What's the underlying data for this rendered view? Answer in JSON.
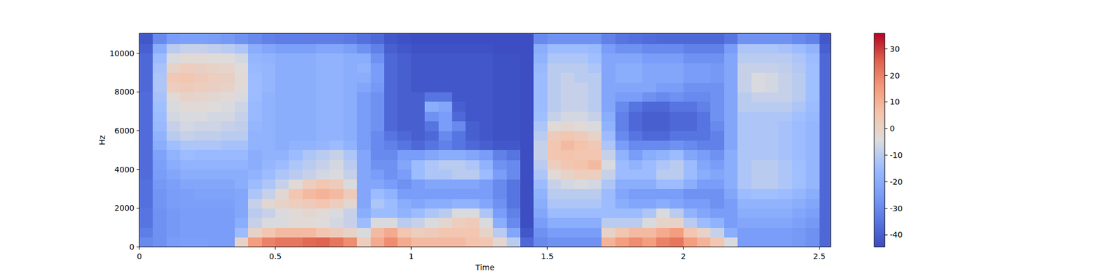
{
  "chart_data": {
    "type": "heatmap",
    "x_label": "Time",
    "y_label": "Hz",
    "x": [
      0.025,
      0.075,
      0.125,
      0.175,
      0.225,
      0.275,
      0.325,
      0.375,
      0.425,
      0.475,
      0.525,
      0.575,
      0.625,
      0.675,
      0.725,
      0.775,
      0.825,
      0.875,
      0.925,
      0.975,
      1.025,
      1.075,
      1.125,
      1.175,
      1.225,
      1.275,
      1.325,
      1.375,
      1.425,
      1.475,
      1.525,
      1.575,
      1.625,
      1.675,
      1.725,
      1.775,
      1.825,
      1.875,
      1.925,
      1.975,
      2.025,
      2.075,
      2.125,
      2.175,
      2.225,
      2.275,
      2.325,
      2.375,
      2.425,
      2.475,
      2.525
    ],
    "y": [
      250,
      750,
      1250,
      1750,
      2250,
      2750,
      3250,
      3750,
      4250,
      4750,
      5250,
      5750,
      6250,
      6750,
      7250,
      7750,
      8250,
      8750,
      9250,
      9750,
      10250,
      10750
    ],
    "cells": [
      [
        -30,
        -33,
        -35,
        -35,
        -36,
        -36,
        -36,
        -37,
        -37,
        -37,
        -37,
        -37,
        -37,
        -37,
        -37,
        -37,
        -38,
        -38,
        -38,
        -38,
        -40,
        -42
      ],
      [
        -28,
        -28,
        -28,
        -28,
        -27,
        -27,
        -26,
        -25,
        -24,
        -23,
        -20,
        -18,
        -16,
        -15,
        -14,
        -13,
        -12,
        -12,
        -13,
        -15,
        -20,
        -30
      ],
      [
        -25,
        -26,
        -26,
        -26,
        -25,
        -25,
        -24,
        -22,
        -20,
        -18,
        -14,
        -10,
        -8,
        -6,
        -5,
        -3,
        2,
        4,
        0,
        -5,
        -10,
        -25
      ],
      [
        -24,
        -25,
        -25,
        -25,
        -24,
        -24,
        -22,
        -20,
        -18,
        -15,
        -12,
        -8,
        -6,
        -5,
        -3,
        0,
        3,
        5,
        2,
        -3,
        -8,
        -24
      ],
      [
        -24,
        -25,
        -25,
        -25,
        -24,
        -23,
        -22,
        -20,
        -18,
        -16,
        -12,
        -9,
        -7,
        -5,
        -3,
        -1,
        2,
        3,
        1,
        -3,
        -8,
        -24
      ],
      [
        -25,
        -25,
        -25,
        -25,
        -24,
        -23,
        -22,
        -20,
        -18,
        -16,
        -12,
        -9,
        -7,
        -6,
        -4,
        -2,
        1,
        2,
        0,
        -4,
        -9,
        -25
      ],
      [
        -25,
        -25,
        -25,
        -25,
        -24,
        -23,
        -22,
        -20,
        -18,
        -16,
        -13,
        -10,
        -8,
        -6,
        -5,
        -3,
        0,
        1,
        -1,
        -4,
        -10,
        -26
      ],
      [
        0,
        -15,
        -20,
        -22,
        -22,
        -22,
        -20,
        -20,
        -18,
        -16,
        -13,
        -10,
        -9,
        -8,
        -7,
        -5,
        -3,
        -3,
        -4,
        -6,
        -12,
        -28
      ],
      [
        15,
        0,
        -8,
        -10,
        -8,
        -12,
        -15,
        -18,
        -20,
        -20,
        -18,
        -18,
        -17,
        -16,
        -16,
        -15,
        -15,
        -15,
        -16,
        -17,
        -20,
        -30
      ],
      [
        20,
        5,
        -5,
        -8,
        -2,
        -8,
        -12,
        -15,
        -17,
        -18,
        -18,
        -18,
        -18,
        -18,
        -18,
        -18,
        -17,
        -17,
        -17,
        -18,
        -22,
        -32
      ],
      [
        22,
        8,
        -5,
        -5,
        0,
        -2,
        -8,
        -12,
        -15,
        -18,
        -20,
        -20,
        -20,
        -20,
        -20,
        -20,
        -20,
        -20,
        -20,
        -20,
        -24,
        -33
      ],
      [
        22,
        8,
        -3,
        -3,
        2,
        5,
        -3,
        -10,
        -12,
        -15,
        -18,
        -20,
        -20,
        -20,
        -20,
        -20,
        -20,
        -20,
        -20,
        -20,
        -24,
        -33
      ],
      [
        24,
        8,
        -3,
        -2,
        3,
        8,
        2,
        -8,
        -10,
        -12,
        -18,
        -20,
        -20,
        -20,
        -20,
        -20,
        -20,
        -20,
        -20,
        -20,
        -24,
        -33
      ],
      [
        25,
        5,
        -4,
        -3,
        5,
        10,
        5,
        -6,
        -8,
        -10,
        -17,
        -18,
        -18,
        -18,
        -18,
        -18,
        -18,
        -18,
        -18,
        -18,
        -22,
        -33
      ],
      [
        22,
        3,
        -6,
        -5,
        2,
        8,
        3,
        -5,
        -6,
        -8,
        -15,
        -18,
        -18,
        -18,
        -18,
        -18,
        -18,
        -18,
        -18,
        -18,
        -22,
        -33
      ],
      [
        18,
        0,
        -8,
        -8,
        -2,
        3,
        -5,
        -8,
        -10,
        -12,
        -18,
        -20,
        -20,
        -20,
        -20,
        -20,
        -20,
        -20,
        -20,
        -20,
        -24,
        -34
      ],
      [
        2,
        -5,
        -15,
        -20,
        -22,
        -22,
        -22,
        -22,
        -22,
        -22,
        -25,
        -25,
        -25,
        -25,
        -25,
        -25,
        -22,
        -20,
        -18,
        -20,
        -28,
        -36
      ],
      [
        12,
        8,
        -5,
        -15,
        -12,
        -15,
        -22,
        -25,
        -28,
        -30,
        -30,
        -30,
        -28,
        -28,
        -28,
        -28,
        -26,
        -25,
        -25,
        -28,
        -32,
        -38
      ],
      [
        18,
        12,
        -5,
        -15,
        -15,
        -18,
        -25,
        -28,
        -28,
        -30,
        -32,
        -35,
        -38,
        -38,
        -38,
        -38,
        -38,
        -38,
        -38,
        -38,
        -40,
        -42
      ],
      [
        12,
        5,
        -10,
        -18,
        -20,
        -25,
        -28,
        -25,
        -22,
        -25,
        -35,
        -38,
        -40,
        -40,
        -40,
        -40,
        -40,
        -40,
        -40,
        -40,
        -42,
        -43
      ],
      [
        8,
        2,
        -8,
        -15,
        -22,
        -25,
        -25,
        -15,
        -15,
        -25,
        -38,
        -40,
        -40,
        -40,
        -40,
        -40,
        -42,
        -42,
        -42,
        -42,
        -43,
        -44
      ],
      [
        8,
        3,
        -5,
        -12,
        -20,
        -25,
        -22,
        -12,
        -12,
        -22,
        -35,
        -38,
        -35,
        -28,
        -20,
        -35,
        -42,
        -42,
        -42,
        -42,
        -43,
        -44
      ],
      [
        8,
        5,
        -2,
        -10,
        -20,
        -25,
        -22,
        -12,
        -10,
        -20,
        -32,
        -30,
        -25,
        -25,
        -22,
        -35,
        -42,
        -42,
        -42,
        -42,
        -43,
        -44
      ],
      [
        8,
        5,
        2,
        -5,
        -18,
        -25,
        -22,
        -10,
        -10,
        -20,
        -35,
        -35,
        -30,
        -38,
        -40,
        -42,
        -42,
        -42,
        -42,
        -42,
        -43,
        -44
      ],
      [
        6,
        5,
        3,
        -5,
        -18,
        -25,
        -22,
        -10,
        -12,
        -22,
        -38,
        -40,
        -40,
        -42,
        -42,
        -42,
        -42,
        -42,
        -42,
        -42,
        -43,
        -44
      ],
      [
        5,
        0,
        -5,
        -12,
        -22,
        -25,
        -25,
        -15,
        -18,
        -25,
        -40,
        -42,
        -42,
        -42,
        -42,
        -42,
        -42,
        -42,
        -42,
        -42,
        -43,
        -44
      ],
      [
        -2,
        -10,
        -20,
        -25,
        -28,
        -30,
        -30,
        -25,
        -28,
        -32,
        -42,
        -43,
        -43,
        -43,
        -43,
        -43,
        -43,
        -43,
        -43,
        -43,
        -44,
        -44
      ],
      [
        -10,
        -22,
        -30,
        -32,
        -35,
        -35,
        -35,
        -30,
        -30,
        -35,
        -42,
        -43,
        -43,
        -43,
        -43,
        -43,
        -43,
        -43,
        -43,
        -43,
        -44,
        -44
      ],
      [
        -38,
        -42,
        -44,
        -44,
        -44,
        -44,
        -44,
        -44,
        -44,
        -44,
        -44,
        -44,
        -44,
        -44,
        -44,
        -44,
        -44,
        -44,
        -44,
        -44,
        -44,
        -44
      ],
      [
        -30,
        -28,
        -25,
        -22,
        -20,
        -18,
        -15,
        -12,
        -10,
        -8,
        -8,
        -10,
        -12,
        -14,
        -15,
        -15,
        -15,
        -15,
        -16,
        -18,
        -20,
        -30
      ],
      [
        -28,
        -25,
        -20,
        -15,
        -12,
        -10,
        -8,
        -3,
        2,
        5,
        5,
        3,
        -3,
        -8,
        -10,
        -10,
        -10,
        -10,
        -10,
        -12,
        -15,
        -28
      ],
      [
        -28,
        -25,
        -20,
        -15,
        -12,
        -10,
        -6,
        0,
        5,
        6,
        8,
        5,
        -2,
        -6,
        -8,
        -8,
        -8,
        -8,
        -10,
        -12,
        -15,
        -28
      ],
      [
        -28,
        -25,
        -20,
        -15,
        -12,
        -10,
        -5,
        2,
        6,
        5,
        6,
        3,
        -3,
        -6,
        -8,
        -8,
        -8,
        -10,
        -10,
        -12,
        -15,
        -28
      ],
      [
        -28,
        -25,
        -20,
        -15,
        -12,
        -10,
        -6,
        2,
        8,
        5,
        4,
        0,
        -5,
        -8,
        -10,
        -10,
        -10,
        -10,
        -12,
        -14,
        -16,
        -28
      ],
      [
        10,
        0,
        -10,
        -15,
        -15,
        -15,
        -12,
        -8,
        -5,
        -8,
        -12,
        -15,
        -18,
        -20,
        -22,
        -22,
        -22,
        -22,
        -22,
        -22,
        -25,
        -32
      ],
      [
        15,
        5,
        -10,
        -15,
        -20,
        -22,
        -20,
        -15,
        -15,
        -18,
        -25,
        -30,
        -32,
        -32,
        -30,
        -25,
        -22,
        -20,
        -20,
        -22,
        -28,
        -35
      ],
      [
        18,
        8,
        -10,
        -15,
        -22,
        -25,
        -20,
        -15,
        -18,
        -25,
        -30,
        -35,
        -38,
        -38,
        -35,
        -25,
        -22,
        -20,
        -20,
        -22,
        -28,
        -36
      ],
      [
        15,
        8,
        -5,
        -12,
        -22,
        -25,
        -20,
        -15,
        -15,
        -20,
        -30,
        -38,
        -40,
        -40,
        -38,
        -28,
        -22,
        -22,
        -22,
        -25,
        -30,
        -37
      ],
      [
        20,
        12,
        0,
        -5,
        -20,
        -25,
        -15,
        -10,
        -12,
        -18,
        -30,
        -38,
        -40,
        -40,
        -38,
        -30,
        -25,
        -22,
        -22,
        -25,
        -30,
        -38
      ],
      [
        22,
        15,
        0,
        -10,
        -22,
        -25,
        -15,
        -10,
        -10,
        -15,
        -28,
        -35,
        -38,
        -38,
        -35,
        -28,
        -25,
        -22,
        -22,
        -25,
        -30,
        -38
      ],
      [
        15,
        5,
        -10,
        -18,
        -25,
        -28,
        -20,
        -15,
        -15,
        -22,
        -30,
        -35,
        -38,
        -38,
        -35,
        -30,
        -28,
        -25,
        -25,
        -28,
        -32,
        -38
      ],
      [
        10,
        0,
        -15,
        -22,
        -25,
        -28,
        -25,
        -20,
        -22,
        -25,
        -32,
        -35,
        -35,
        -35,
        -32,
        -30,
        -28,
        -25,
        -25,
        -28,
        -32,
        -38
      ],
      [
        5,
        -8,
        -18,
        -25,
        -28,
        -28,
        -25,
        -22,
        -25,
        -28,
        -32,
        -32,
        -30,
        -28,
        -28,
        -28,
        -28,
        -26,
        -26,
        -28,
        -32,
        -38
      ],
      [
        -5,
        -20,
        -25,
        -25,
        -25,
        -22,
        -20,
        -20,
        -20,
        -20,
        -22,
        -22,
        -22,
        -22,
        -22,
        -22,
        -22,
        -22,
        -22,
        -22,
        -25,
        -35
      ],
      [
        -25,
        -25,
        -22,
        -20,
        -18,
        -15,
        -12,
        -12,
        -12,
        -12,
        -12,
        -12,
        -12,
        -12,
        -10,
        -10,
        -8,
        -8,
        -8,
        -10,
        -12,
        -28
      ],
      [
        -25,
        -25,
        -22,
        -20,
        -18,
        -14,
        -10,
        -10,
        -10,
        -12,
        -12,
        -12,
        -12,
        -12,
        -10,
        -8,
        -5,
        -5,
        -8,
        -10,
        -12,
        -28
      ],
      [
        -25,
        -25,
        -22,
        -20,
        -18,
        -14,
        -10,
        -10,
        -10,
        -12,
        -12,
        -12,
        -12,
        -12,
        -10,
        -8,
        -6,
        -6,
        -8,
        -10,
        -12,
        -28
      ],
      [
        -25,
        -25,
        -22,
        -20,
        -18,
        -15,
        -12,
        -12,
        -12,
        -13,
        -13,
        -13,
        -13,
        -12,
        -10,
        -8,
        -8,
        -8,
        -9,
        -10,
        -13,
        -28
      ],
      [
        -26,
        -26,
        -24,
        -22,
        -20,
        -17,
        -14,
        -14,
        -14,
        -15,
        -15,
        -15,
        -15,
        -14,
        -12,
        -10,
        -10,
        -10,
        -11,
        -12,
        -15,
        -30
      ],
      [
        -28,
        -28,
        -26,
        -24,
        -22,
        -20,
        -17,
        -17,
        -17,
        -17,
        -17,
        -17,
        -17,
        -16,
        -15,
        -14,
        -14,
        -14,
        -14,
        -15,
        -18,
        -32
      ],
      [
        -38,
        -38,
        -38,
        -38,
        -38,
        -38,
        -38,
        -38,
        -38,
        -38,
        -38,
        -38,
        -38,
        -38,
        -38,
        -38,
        -38,
        -38,
        -38,
        -38,
        -40,
        -42
      ]
    ],
    "xlim": [
      0,
      2.542
    ],
    "ylim": [
      0,
      11025
    ],
    "xticks": [
      0,
      0.5,
      1,
      1.5,
      2,
      2.5
    ],
    "yticks": [
      0,
      2000,
      4000,
      6000,
      8000,
      10000
    ],
    "clim": [
      -44.5,
      35.8
    ],
    "cticks": [
      -40,
      -30,
      -20,
      -10,
      0,
      10,
      20,
      30
    ]
  }
}
